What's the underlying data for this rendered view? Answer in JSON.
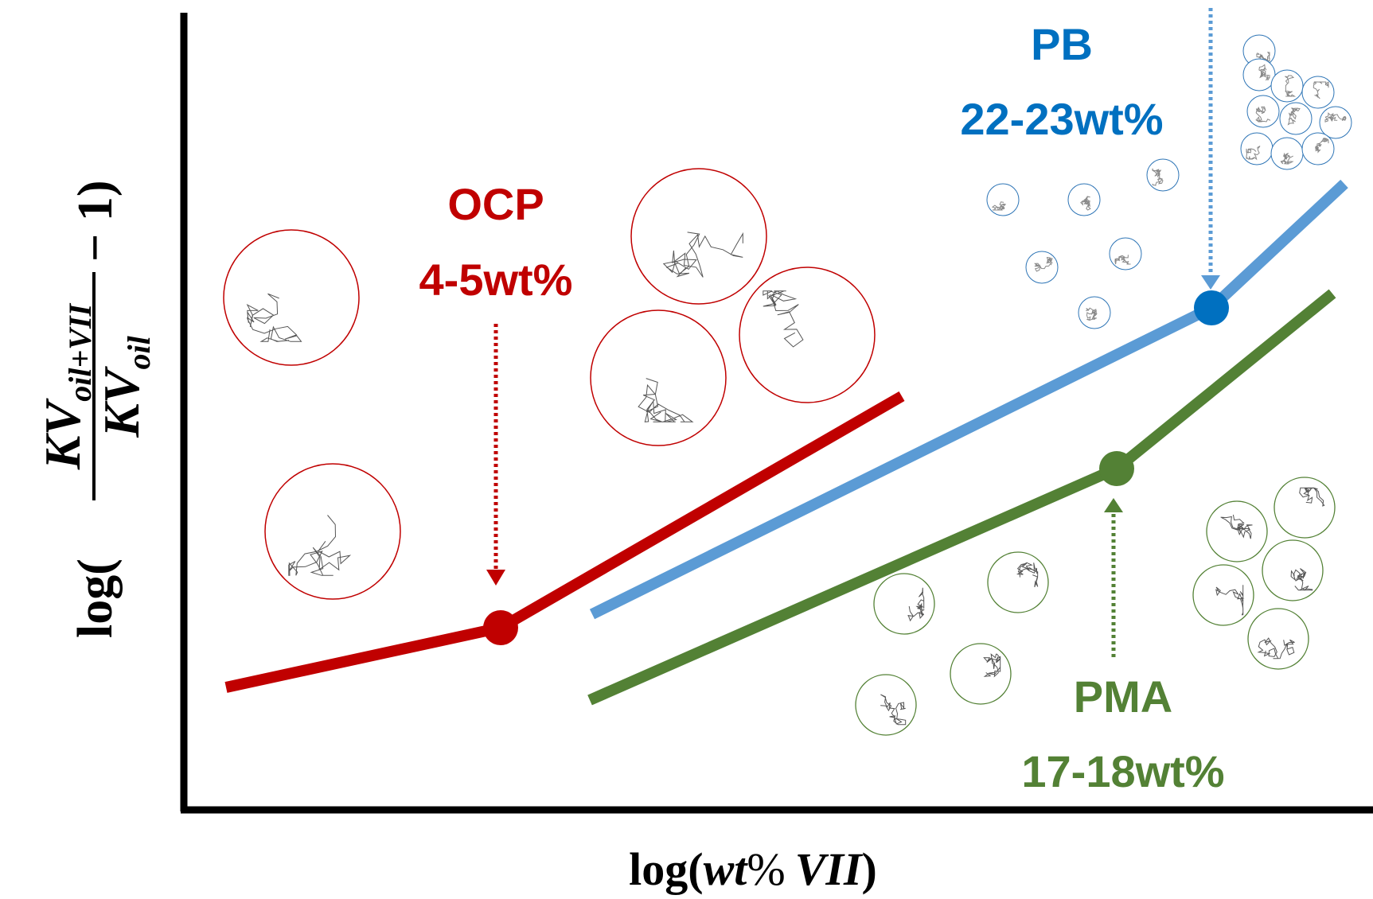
{
  "x_label": {
    "prefix": "log(",
    "italic": "wt",
    "percent": "%",
    "italic2": "VII",
    "suffix": ")"
  },
  "y_label": {
    "prefix": "log(",
    "numerator": {
      "main": "KV",
      "sub": "oil+VII"
    },
    "denominator": {
      "main": "KV",
      "sub": "oil"
    },
    "suffix": "− 1)"
  },
  "annotations": {
    "ocp": {
      "name": "OCP",
      "range": "4-5wt%"
    },
    "pb": {
      "name": "PB",
      "range": "22-23wt%"
    },
    "pma": {
      "name": "PMA",
      "range": "17-18wt%"
    }
  }
}
